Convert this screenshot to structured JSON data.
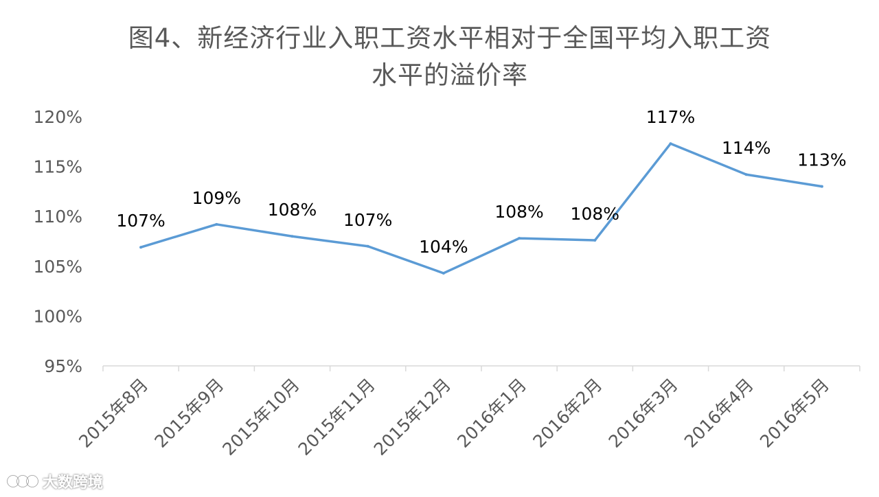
{
  "chart_data": {
    "type": "line",
    "title_line1": "图4、新经济行业入职工资水平相对于全国平均入职工资",
    "title_line2": "水平的溢价率",
    "categories": [
      "2015年8月",
      "2015年9月",
      "2015年10月",
      "2015年11月",
      "2015年12月",
      "2016年1月",
      "2016年2月",
      "2016年3月",
      "2016年4月",
      "2016年5月"
    ],
    "series": [
      {
        "values": [
          106.9,
          109.2,
          108.0,
          107.0,
          104.3,
          107.8,
          107.6,
          117.3,
          114.2,
          113.0
        ],
        "labels": [
          "107%",
          "109%",
          "108%",
          "107%",
          "104%",
          "108%",
          "108%",
          "117%",
          "114%",
          "113%"
        ],
        "color": "#5b9bd5"
      }
    ],
    "ylim": [
      95,
      120
    ],
    "yticks": [
      95,
      100,
      105,
      110,
      115,
      120
    ],
    "ytick_labels": [
      "95%",
      "100%",
      "105%",
      "110%",
      "115%",
      "120%"
    ],
    "grid": false
  },
  "watermark": {
    "text": "大数跨境"
  }
}
